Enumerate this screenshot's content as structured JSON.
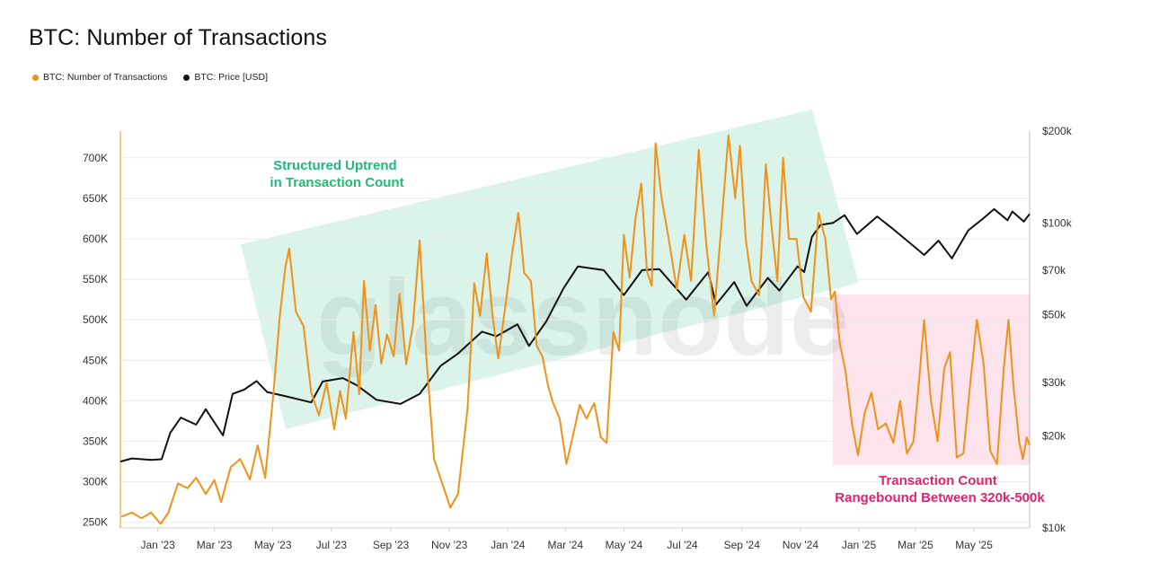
{
  "title": "BTC: Number of Transactions",
  "legend": [
    {
      "label": "BTC: Number of Transactions",
      "color": "#f0921a"
    },
    {
      "label": "BTC: Price [USD]",
      "color": "#111111"
    }
  ],
  "watermark": "glassnode",
  "chart_data": {
    "type": "line",
    "title": "BTC: Number of Transactions",
    "x_tick_labels": [
      "Jan '23",
      "Mar '23",
      "May '23",
      "Jul '23",
      "Sep '23",
      "Nov '23",
      "Jan '24",
      "Mar '24",
      "May '24",
      "Jul '24",
      "Sep '24",
      "Nov '24",
      "Jan '25",
      "Mar '25",
      "May '25"
    ],
    "y_left": {
      "ticks": [
        250000,
        300000,
        350000,
        400000,
        450000,
        500000,
        550000,
        600000,
        650000,
        700000
      ],
      "tick_labels": [
        "250K",
        "300K",
        "350K",
        "400K",
        "450K",
        "500K",
        "550K",
        "600K",
        "650K",
        "700K"
      ],
      "range": [
        243000,
        733000
      ]
    },
    "y_right": {
      "scale": "log",
      "range": [
        10000,
        200000
      ],
      "ticks": [
        10000,
        20000,
        30000,
        50000,
        70000,
        100000,
        200000
      ],
      "tick_labels": [
        "$10k",
        "$20k",
        "$30k",
        "$50k",
        "$70k",
        "$100k",
        "$200k"
      ]
    },
    "x_range": [
      "2022-11-23",
      "2025-06-28"
    ],
    "series": [
      {
        "name": "BTC: Number of Transactions",
        "axis": "left",
        "color": "#f0921a",
        "points": [
          [
            "2022-11-24",
            257000
          ],
          [
            "2022-12-05",
            262000
          ],
          [
            "2022-12-15",
            255000
          ],
          [
            "2022-12-25",
            262000
          ],
          [
            "2023-01-04",
            248000
          ],
          [
            "2023-01-12",
            262000
          ],
          [
            "2023-01-22",
            298000
          ],
          [
            "2023-02-01",
            292000
          ],
          [
            "2023-02-10",
            305000
          ],
          [
            "2023-02-20",
            285000
          ],
          [
            "2023-03-01",
            302000
          ],
          [
            "2023-03-08",
            275000
          ],
          [
            "2023-03-18",
            318000
          ],
          [
            "2023-03-28",
            328000
          ],
          [
            "2023-04-07",
            303000
          ],
          [
            "2023-04-15",
            345000
          ],
          [
            "2023-04-23",
            305000
          ],
          [
            "2023-05-02",
            415000
          ],
          [
            "2023-05-08",
            502000
          ],
          [
            "2023-05-14",
            565000
          ],
          [
            "2023-05-18",
            588000
          ],
          [
            "2023-05-25",
            510000
          ],
          [
            "2023-06-02",
            492000
          ],
          [
            "2023-06-10",
            410000
          ],
          [
            "2023-06-18",
            382000
          ],
          [
            "2023-06-26",
            422000
          ],
          [
            "2023-07-04",
            365000
          ],
          [
            "2023-07-10",
            412000
          ],
          [
            "2023-07-16",
            378000
          ],
          [
            "2023-07-24",
            485000
          ],
          [
            "2023-07-30",
            408000
          ],
          [
            "2023-08-04",
            548000
          ],
          [
            "2023-08-10",
            462000
          ],
          [
            "2023-08-16",
            518000
          ],
          [
            "2023-08-22",
            446000
          ],
          [
            "2023-08-28",
            482000
          ],
          [
            "2023-09-04",
            455000
          ],
          [
            "2023-09-10",
            532000
          ],
          [
            "2023-09-17",
            445000
          ],
          [
            "2023-09-24",
            493000
          ],
          [
            "2023-10-01",
            598000
          ],
          [
            "2023-10-08",
            455000
          ],
          [
            "2023-10-16",
            328000
          ],
          [
            "2023-10-24",
            300000
          ],
          [
            "2023-11-02",
            268000
          ],
          [
            "2023-11-10",
            285000
          ],
          [
            "2023-11-20",
            390000
          ],
          [
            "2023-11-27",
            545000
          ],
          [
            "2023-12-03",
            505000
          ],
          [
            "2023-12-10",
            582000
          ],
          [
            "2023-12-16",
            505000
          ],
          [
            "2023-12-22",
            452000
          ],
          [
            "2023-12-30",
            522000
          ],
          [
            "2024-01-06",
            587000
          ],
          [
            "2024-01-12",
            632000
          ],
          [
            "2024-01-18",
            558000
          ],
          [
            "2024-01-25",
            548000
          ],
          [
            "2024-01-31",
            468000
          ],
          [
            "2024-02-06",
            455000
          ],
          [
            "2024-02-12",
            418000
          ],
          [
            "2024-02-17",
            398000
          ],
          [
            "2024-02-24",
            378000
          ],
          [
            "2024-03-02",
            322000
          ],
          [
            "2024-03-09",
            358000
          ],
          [
            "2024-03-16",
            395000
          ],
          [
            "2024-03-23",
            378000
          ],
          [
            "2024-03-31",
            397000
          ],
          [
            "2024-04-07",
            355000
          ],
          [
            "2024-04-13",
            348000
          ],
          [
            "2024-04-20",
            485000
          ],
          [
            "2024-04-26",
            462000
          ],
          [
            "2024-05-01",
            605000
          ],
          [
            "2024-05-07",
            552000
          ],
          [
            "2024-05-13",
            625000
          ],
          [
            "2024-05-19",
            668000
          ],
          [
            "2024-05-25",
            560000
          ],
          [
            "2024-05-30",
            542000
          ],
          [
            "2024-06-03",
            718000
          ],
          [
            "2024-06-09",
            652000
          ],
          [
            "2024-06-17",
            598000
          ],
          [
            "2024-06-25",
            538000
          ],
          [
            "2024-07-03",
            605000
          ],
          [
            "2024-07-10",
            548000
          ],
          [
            "2024-07-18",
            710000
          ],
          [
            "2024-07-26",
            592000
          ],
          [
            "2024-08-03",
            505000
          ],
          [
            "2024-08-10",
            608000
          ],
          [
            "2024-08-18",
            728000
          ],
          [
            "2024-08-25",
            650000
          ],
          [
            "2024-08-30",
            715000
          ],
          [
            "2024-09-05",
            600000
          ],
          [
            "2024-09-11",
            548000
          ],
          [
            "2024-09-19",
            530000
          ],
          [
            "2024-09-26",
            692000
          ],
          [
            "2024-10-02",
            615000
          ],
          [
            "2024-10-08",
            548000
          ],
          [
            "2024-10-14",
            700000
          ],
          [
            "2024-10-20",
            600000
          ],
          [
            "2024-10-28",
            600000
          ],
          [
            "2024-11-04",
            528000
          ],
          [
            "2024-11-12",
            510000
          ],
          [
            "2024-11-20",
            632000
          ],
          [
            "2024-11-27",
            600000
          ],
          [
            "2024-12-03",
            525000
          ],
          [
            "2024-12-07",
            535000
          ],
          [
            "2024-12-12",
            472000
          ],
          [
            "2024-12-18",
            437000
          ],
          [
            "2024-12-25",
            370000
          ],
          [
            "2024-12-31",
            333000
          ],
          [
            "2025-01-07",
            385000
          ],
          [
            "2025-01-14",
            410000
          ],
          [
            "2025-01-21",
            365000
          ],
          [
            "2025-01-29",
            372000
          ],
          [
            "2025-02-06",
            348000
          ],
          [
            "2025-02-13",
            400000
          ],
          [
            "2025-02-20",
            335000
          ],
          [
            "2025-02-27",
            350000
          ],
          [
            "2025-03-05",
            428000
          ],
          [
            "2025-03-10",
            500000
          ],
          [
            "2025-03-17",
            402000
          ],
          [
            "2025-03-24",
            350000
          ],
          [
            "2025-03-31",
            440000
          ],
          [
            "2025-04-06",
            460000
          ],
          [
            "2025-04-13",
            330000
          ],
          [
            "2025-04-20",
            335000
          ],
          [
            "2025-04-27",
            420000
          ],
          [
            "2025-05-04",
            500000
          ],
          [
            "2025-05-11",
            445000
          ],
          [
            "2025-05-18",
            338000
          ],
          [
            "2025-05-25",
            322000
          ],
          [
            "2025-06-01",
            440000
          ],
          [
            "2025-06-06",
            500000
          ],
          [
            "2025-06-11",
            420000
          ],
          [
            "2025-06-17",
            350000
          ],
          [
            "2025-06-21",
            328000
          ],
          [
            "2025-06-25",
            355000
          ],
          [
            "2025-06-28",
            345000
          ]
        ]
      },
      {
        "name": "BTC: Price [USD]",
        "axis": "right",
        "color": "#111111",
        "points": [
          [
            "2022-11-23",
            16500
          ],
          [
            "2022-12-05",
            16900
          ],
          [
            "2022-12-25",
            16700
          ],
          [
            "2023-01-05",
            16800
          ],
          [
            "2023-01-14",
            20500
          ],
          [
            "2023-01-25",
            23000
          ],
          [
            "2023-02-10",
            21800
          ],
          [
            "2023-02-20",
            24500
          ],
          [
            "2023-03-10",
            20100
          ],
          [
            "2023-03-20",
            27500
          ],
          [
            "2023-04-01",
            28400
          ],
          [
            "2023-04-14",
            30300
          ],
          [
            "2023-04-25",
            27900
          ],
          [
            "2023-05-15",
            27000
          ],
          [
            "2023-06-10",
            25800
          ],
          [
            "2023-06-22",
            30200
          ],
          [
            "2023-07-13",
            31000
          ],
          [
            "2023-07-28",
            29300
          ],
          [
            "2023-08-17",
            26300
          ],
          [
            "2023-09-11",
            25500
          ],
          [
            "2023-10-01",
            27500
          ],
          [
            "2023-10-23",
            34000
          ],
          [
            "2023-11-10",
            37300
          ],
          [
            "2023-12-05",
            44000
          ],
          [
            "2023-12-20",
            42500
          ],
          [
            "2024-01-11",
            46500
          ],
          [
            "2024-01-23",
            39500
          ],
          [
            "2024-02-10",
            47500
          ],
          [
            "2024-02-28",
            61000
          ],
          [
            "2024-03-14",
            72000
          ],
          [
            "2024-04-10",
            70000
          ],
          [
            "2024-05-01",
            58000
          ],
          [
            "2024-05-20",
            70000
          ],
          [
            "2024-06-07",
            70500
          ],
          [
            "2024-07-05",
            56000
          ],
          [
            "2024-07-28",
            69000
          ],
          [
            "2024-08-05",
            54000
          ],
          [
            "2024-08-24",
            64000
          ],
          [
            "2024-09-06",
            53500
          ],
          [
            "2024-09-28",
            66000
          ],
          [
            "2024-10-10",
            60000
          ],
          [
            "2024-10-29",
            72000
          ],
          [
            "2024-11-05",
            69000
          ],
          [
            "2024-11-13",
            90000
          ],
          [
            "2024-11-22",
            98500
          ],
          [
            "2024-12-05",
            100000
          ],
          [
            "2024-12-17",
            106000
          ],
          [
            "2024-12-30",
            92000
          ],
          [
            "2025-01-20",
            105000
          ],
          [
            "2025-02-03",
            97000
          ],
          [
            "2025-02-27",
            84000
          ],
          [
            "2025-03-10",
            78500
          ],
          [
            "2025-03-25",
            87500
          ],
          [
            "2025-04-08",
            76500
          ],
          [
            "2025-04-25",
            94500
          ],
          [
            "2025-05-10",
            103000
          ],
          [
            "2025-05-22",
            111000
          ],
          [
            "2025-06-05",
            102000
          ],
          [
            "2025-06-10",
            109000
          ],
          [
            "2025-06-22",
            101000
          ],
          [
            "2025-06-28",
            107000
          ]
        ]
      }
    ],
    "annotations": [
      {
        "text": [
          "Structured Uptrend",
          "in Transaction Count"
        ],
        "color": "#1fb978",
        "fill": "rgba(31,185,120,0.16)"
      },
      {
        "text": [
          "Transaction Count",
          "Rangebound Between 320k-500k"
        ],
        "color": "#e0236f",
        "fill": "rgba(230,40,110,0.13)"
      }
    ]
  }
}
